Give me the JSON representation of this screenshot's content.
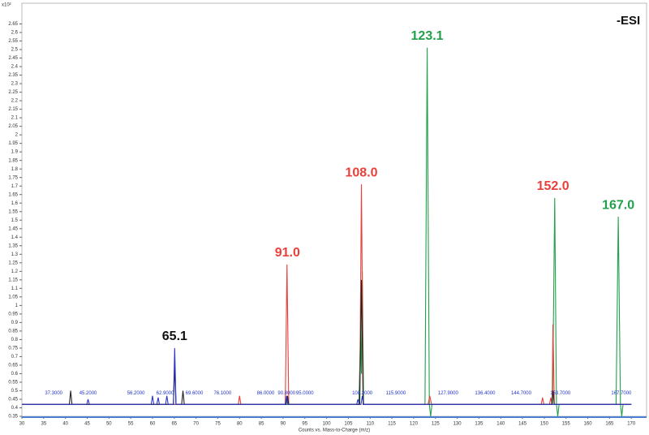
{
  "chart_data": {
    "type": "line",
    "mode": "-ESI",
    "y_multiplier": "x10²",
    "x_label": "Counts vs. Mass-to-Charge (m/z)",
    "xlim": [
      30,
      173.5
    ],
    "xticks": [
      30,
      35,
      40,
      45,
      50,
      55,
      60,
      65,
      70,
      75,
      80,
      85,
      90,
      95,
      100,
      105,
      110,
      115,
      120,
      125,
      130,
      135,
      140,
      145,
      150,
      155,
      160,
      165,
      170
    ],
    "ylim": [
      0.35,
      2.7
    ],
    "yticks": [
      0.35,
      0.4,
      0.45,
      0.5,
      0.55,
      0.6,
      0.65,
      0.7,
      0.75,
      0.8,
      0.85,
      0.9,
      0.95,
      1,
      1.05,
      1.1,
      1.15,
      1.2,
      1.25,
      1.3,
      1.35,
      1.4,
      1.45,
      1.5,
      1.55,
      1.6,
      1.65,
      1.7,
      1.75,
      1.8,
      1.85,
      1.9,
      1.95,
      2,
      2.05,
      2.1,
      2.15,
      2.2,
      2.25,
      2.3,
      2.35,
      2.4,
      2.45,
      2.5,
      2.55,
      2.6,
      2.65
    ],
    "series": [
      {
        "color": "#22a04a",
        "x": [
          30,
          107.4,
          107.8,
          108.0,
          108.2,
          108.5,
          122.6,
          123.1,
          123.6,
          123.9,
          124.2,
          151.9,
          152.4,
          152.8,
          153.1,
          153.4,
          166.5,
          167.0,
          167.5,
          167.8,
          168.1,
          170
        ],
        "values": [
          0.42,
          0.42,
          0.83,
          0.6,
          1.2,
          0.42,
          0.42,
          2.51,
          0.42,
          0.35,
          0.42,
          0.42,
          1.63,
          0.42,
          0.35,
          0.42,
          0.42,
          1.52,
          0.42,
          0.35,
          0.42,
          0.42
        ]
      },
      {
        "color": "#e8403a",
        "x": [
          30,
          79.7,
          80.0,
          80.3,
          90.5,
          90.9,
          91.3,
          107.6,
          108.0,
          108.4,
          123.3,
          123.7,
          124.1,
          149.3,
          149.6,
          149.9,
          151.2,
          151.5,
          151.8,
          152.0,
          152.3,
          170
        ],
        "values": [
          0.42,
          0.42,
          0.47,
          0.42,
          0.42,
          1.24,
          0.42,
          0.42,
          1.71,
          0.42,
          0.42,
          0.47,
          0.42,
          0.42,
          0.46,
          0.42,
          0.42,
          0.46,
          0.42,
          0.89,
          0.42,
          0.42
        ]
      },
      {
        "color": "#222222",
        "x": [
          30,
          40.9,
          41.2,
          41.5,
          64.8,
          65.1,
          65.4,
          66.7,
          67.0,
          67.3,
          90.7,
          91.0,
          91.3,
          107.6,
          108.0,
          108.4,
          151.7,
          152.0,
          152.3,
          170
        ],
        "values": [
          0.42,
          0.42,
          0.5,
          0.42,
          0.42,
          0.64,
          0.42,
          0.42,
          0.5,
          0.42,
          0.42,
          0.47,
          0.42,
          0.42,
          1.15,
          0.42,
          0.42,
          0.5,
          0.42,
          0.42
        ]
      },
      {
        "color": "#2b35c8",
        "x": [
          30,
          44.9,
          45.2,
          45.5,
          59.7,
          60.0,
          60.3,
          61.0,
          61.3,
          61.6,
          63.0,
          63.3,
          63.6,
          64.8,
          65.1,
          65.4,
          90.5,
          90.8,
          91.1,
          106.9,
          107.2,
          107.5,
          107.9,
          108.2,
          108.5,
          170
        ],
        "values": [
          0.42,
          0.42,
          0.45,
          0.42,
          0.42,
          0.47,
          0.42,
          0.42,
          0.46,
          0.42,
          0.42,
          0.47,
          0.42,
          0.42,
          0.75,
          0.42,
          0.42,
          0.47,
          0.42,
          0.42,
          0.45,
          0.42,
          0.42,
          0.47,
          0.42,
          0.42
        ]
      }
    ],
    "peak_labels": [
      "37.3000",
      "45.2000",
      "56.2000",
      "62.9000",
      "69.6000",
      "76.1000",
      "86.0000",
      "90.8000",
      "95.0000",
      "108.2000",
      "115.9000",
      "127.9000",
      "136.4000",
      "144.7000",
      "153.7000",
      "167.7000"
    ],
    "annotations": [
      {
        "text": "65.1",
        "x": 65.1,
        "y": 0.75,
        "color": "#111111"
      },
      {
        "text": "91.0",
        "x": 91.0,
        "y": 1.24,
        "color": "#e8403a"
      },
      {
        "text": "108.0",
        "x": 108.0,
        "y": 1.71,
        "color": "#e8403a"
      },
      {
        "text": "123.1",
        "x": 123.1,
        "y": 2.51,
        "color": "#22a04a"
      },
      {
        "text": "152.0",
        "x": 152.0,
        "y": 1.63,
        "color": "#e8403a"
      },
      {
        "text": "167.0",
        "x": 167.0,
        "y": 1.52,
        "color": "#22a04a"
      }
    ]
  }
}
